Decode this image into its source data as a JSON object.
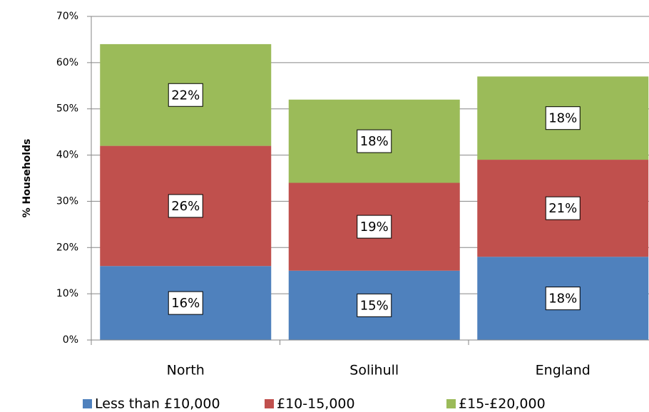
{
  "chart_data": {
    "type": "stacked_bar",
    "y_label": "% Households",
    "categories": [
      "North",
      "Solihull",
      "England"
    ],
    "series": [
      {
        "name": "Less than £10,000",
        "color": "#4f81bd",
        "values": [
          16,
          15,
          18
        ],
        "value_labels": [
          "16%",
          "15%",
          "18%"
        ]
      },
      {
        "name": "£10-15,000",
        "color": "#c0504d",
        "values": [
          26,
          19,
          21
        ],
        "value_labels": [
          "26%",
          "19%",
          "21%"
        ]
      },
      {
        "name": "£15-£20,000",
        "color": "#9bbb59",
        "values": [
          22,
          18,
          18
        ],
        "value_labels": [
          "22%",
          "18%",
          "18%"
        ]
      }
    ],
    "ylim": [
      0,
      70
    ],
    "yticks": [
      {
        "value": 0,
        "label": "0%"
      },
      {
        "value": 10,
        "label": "10%"
      },
      {
        "value": 20,
        "label": "20%"
      },
      {
        "value": 30,
        "label": "30%"
      },
      {
        "value": 40,
        "label": "40%"
      },
      {
        "value": 50,
        "label": "50%"
      },
      {
        "value": 60,
        "label": "60%"
      },
      {
        "value": 70,
        "label": "70%"
      }
    ],
    "grid": true,
    "legend": "bottom"
  }
}
